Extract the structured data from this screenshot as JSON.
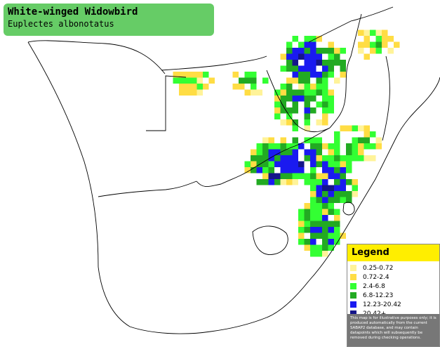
{
  "title": {
    "common_name": "White-winged Widowbird",
    "scientific_name": "Euplectes albonotatus"
  },
  "legend": {
    "heading": "Legend",
    "items": [
      {
        "label": "0.25-0.72",
        "color": "#fff399"
      },
      {
        "label": "0.72-2.4",
        "color": "#ffdd44"
      },
      {
        "label": "2.4-6.8",
        "color": "#33ff33"
      },
      {
        "label": "6.8-12.23",
        "color": "#22aa22"
      },
      {
        "label": "12.23-20.42",
        "color": "#1a1af0"
      },
      {
        "label": "20.42+",
        "color": "#15158a"
      }
    ],
    "note": "This map is for illustrative purposes only; it is produced automatically from the current SABAP2 database, and may contain datapoints which will subsequently be removed during checking operations."
  },
  "colors": {
    "title_bg": "#66cc66",
    "legend_header_bg": "#ffee00",
    "legend_note_bg": "#777777",
    "border_lines": "#000000",
    "land": "#ffffff"
  }
}
